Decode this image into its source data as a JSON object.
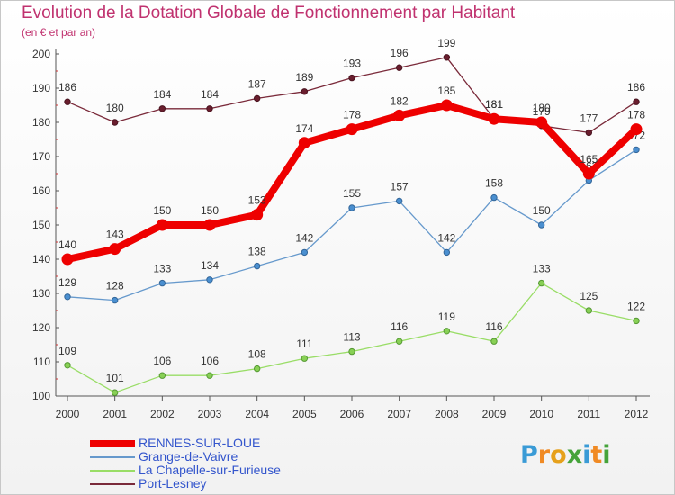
{
  "title": "Evolution de la Dotation Globale de Fonctionnement par Habitant",
  "subtitle": "(en € et par an)",
  "chart_data": {
    "type": "line",
    "x": [
      "2000",
      "2001",
      "2002",
      "2003",
      "2004",
      "2005",
      "2006",
      "2007",
      "2008",
      "2009",
      "2010",
      "2011",
      "2012"
    ],
    "ylim": [
      100,
      200
    ],
    "yticks": [
      100,
      110,
      120,
      130,
      140,
      150,
      160,
      170,
      180,
      190,
      200
    ],
    "grid": false,
    "legend_position": "bottom-left",
    "series": [
      {
        "name": "Port-Lesney",
        "color": "#7a2a3a",
        "values": [
          186,
          180,
          184,
          184,
          187,
          189,
          193,
          196,
          199,
          181,
          179,
          177,
          186
        ]
      },
      {
        "name": "La Chapelle-sur-Furieuse",
        "color": "#99dd66",
        "values": [
          109,
          101,
          106,
          106,
          108,
          111,
          113,
          116,
          119,
          116,
          133,
          125,
          122
        ]
      },
      {
        "name": "Grange-de-Vaivre",
        "color": "#6699cc",
        "values": [
          129,
          128,
          133,
          134,
          138,
          142,
          155,
          157,
          142,
          158,
          150,
          163,
          172
        ]
      },
      {
        "name": "RENNES-SUR-LOUE",
        "color": "#ee0000",
        "values": [
          140,
          143,
          150,
          150,
          153,
          174,
          178,
          182,
          185,
          181,
          180,
          165,
          178
        ]
      }
    ]
  },
  "legend": [
    {
      "label": "RENNES-SUR-LOUE",
      "color": "#ee0000"
    },
    {
      "label": "Grange-de-Vaivre",
      "color": "#6699cc"
    },
    {
      "label": "La Chapelle-sur-Furieuse",
      "color": "#99dd66"
    },
    {
      "label": "Port-Lesney",
      "color": "#7a2a3a"
    }
  ],
  "logo": {
    "text": "Proxiti",
    "colors": [
      "#3a9bd6",
      "#f08a24",
      "#e6a11c",
      "#45a33a",
      "#3a9bd6",
      "#f08a24",
      "#45a33a"
    ]
  }
}
